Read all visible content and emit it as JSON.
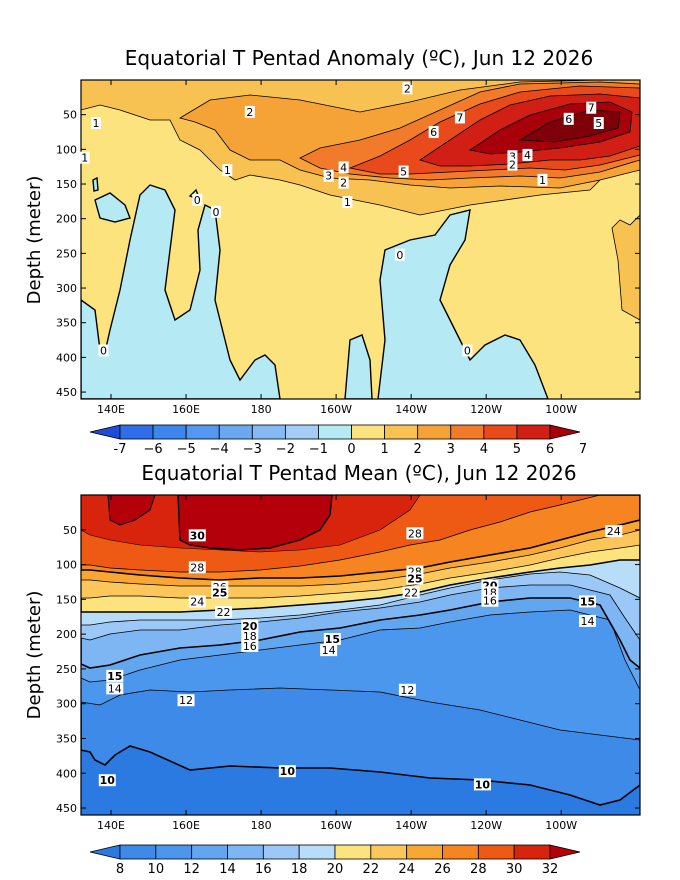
{
  "chart_data": [
    {
      "type": "heatmap",
      "title": "Equatorial T Pentad Anomaly (ºC), Jun 12 2026",
      "ylabel": "Depth (meter)",
      "xlabel": "",
      "x_ticks": [
        "140E",
        "160E",
        "180",
        "160W",
        "140W",
        "120W",
        "100W"
      ],
      "x_tick_lon": [
        140,
        160,
        180,
        200,
        220,
        240,
        260
      ],
      "xlim_lon": [
        132,
        281
      ],
      "y_ticks": [
        50,
        100,
        150,
        200,
        250,
        300,
        350,
        400,
        450
      ],
      "ylim": [
        0,
        460
      ],
      "colorbar_levels": [
        -7,
        -6,
        -5,
        -4,
        -3,
        -2,
        -1,
        0,
        1,
        2,
        3,
        4,
        5,
        6,
        7
      ],
      "colorbar_labels": [
        "-7",
        "−6",
        "−5",
        "−4",
        "−3",
        "−2",
        "−1",
        "0",
        "1",
        "2",
        "3",
        "4",
        "5",
        "6",
        "7"
      ],
      "colors": [
        "#1f4bd6",
        "#2f6ee8",
        "#3d86ee",
        "#5397f0",
        "#6aa8f2",
        "#86baf4",
        "#a3cdf6",
        "#b5eaf4",
        "#fde37d",
        "#f8c252",
        "#f5a236",
        "#f17b2a",
        "#e94a1c",
        "#d11f16",
        "#a8000a"
      ],
      "contour_labels": [
        {
          "lon": 219,
          "depth": 12,
          "label": "2"
        },
        {
          "lon": 177,
          "depth": 46,
          "label": "2"
        },
        {
          "lon": 136,
          "depth": 62,
          "label": "1"
        },
        {
          "lon": 233,
          "depth": 54,
          "label": "7"
        },
        {
          "lon": 268,
          "depth": 40,
          "label": "7"
        },
        {
          "lon": 262,
          "depth": 56,
          "label": "6"
        },
        {
          "lon": 270,
          "depth": 62,
          "label": "5"
        },
        {
          "lon": 226,
          "depth": 75,
          "label": "6"
        },
        {
          "lon": 247,
          "depth": 110,
          "label": "3"
        },
        {
          "lon": 251,
          "depth": 108,
          "label": "4"
        },
        {
          "lon": 247,
          "depth": 122,
          "label": "2"
        },
        {
          "lon": 133,
          "depth": 112,
          "label": "1"
        },
        {
          "lon": 171,
          "depth": 130,
          "label": "1"
        },
        {
          "lon": 202,
          "depth": 126,
          "label": "4"
        },
        {
          "lon": 198,
          "depth": 138,
          "label": "3"
        },
        {
          "lon": 202,
          "depth": 148,
          "label": "2"
        },
        {
          "lon": 218,
          "depth": 132,
          "label": "5"
        },
        {
          "lon": 255,
          "depth": 144,
          "label": "1"
        },
        {
          "lon": 203,
          "depth": 176,
          "label": "1"
        },
        {
          "lon": 163,
          "depth": 173,
          "label": "0"
        },
        {
          "lon": 168,
          "depth": 190,
          "label": "0"
        },
        {
          "lon": 217,
          "depth": 252,
          "label": "0"
        },
        {
          "lon": 138,
          "depth": 390,
          "label": "0"
        },
        {
          "lon": 235,
          "depth": 390,
          "label": "0"
        }
      ]
    },
    {
      "type": "heatmap",
      "title": "Equatorial T Pentad Mean (ºC), Jun 12 2026",
      "ylabel": "Depth (meter)",
      "xlabel": "",
      "x_ticks": [
        "140E",
        "160E",
        "180",
        "160W",
        "140W",
        "120W",
        "100W"
      ],
      "x_tick_lon": [
        140,
        160,
        180,
        200,
        220,
        240,
        260
      ],
      "xlim_lon": [
        132,
        281
      ],
      "y_ticks": [
        50,
        100,
        150,
        200,
        250,
        300,
        350,
        400,
        450
      ],
      "ylim": [
        0,
        460
      ],
      "colorbar_levels": [
        8,
        10,
        12,
        14,
        16,
        18,
        20,
        22,
        24,
        26,
        28,
        30,
        32
      ],
      "colorbar_labels": [
        "8",
        "10",
        "12",
        "14",
        "16",
        "18",
        "20",
        "22",
        "24",
        "26",
        "28",
        "30",
        "32"
      ],
      "colors": [
        "#2a7ae2",
        "#3d8ae8",
        "#4c97ee",
        "#62a6f0",
        "#7db6f3",
        "#9bc8f6",
        "#b7ddf8",
        "#fde37d",
        "#fcc65a",
        "#f9a633",
        "#f68421",
        "#ee5a14",
        "#d8240c",
        "#b3000a"
      ],
      "contour_labels": [
        {
          "lon": 163,
          "depth": 58,
          "label": "30",
          "bold": true
        },
        {
          "lon": 221,
          "depth": 55,
          "label": "28"
        },
        {
          "lon": 274,
          "depth": 52,
          "label": "24"
        },
        {
          "lon": 163,
          "depth": 104,
          "label": "28"
        },
        {
          "lon": 221,
          "depth": 110,
          "label": "28"
        },
        {
          "lon": 169,
          "depth": 132,
          "label": "26"
        },
        {
          "lon": 169,
          "depth": 140,
          "label": "25",
          "bold": true
        },
        {
          "lon": 221,
          "depth": 120,
          "label": "25",
          "bold": true
        },
        {
          "lon": 163,
          "depth": 153,
          "label": "24"
        },
        {
          "lon": 220,
          "depth": 140,
          "label": "22"
        },
        {
          "lon": 170,
          "depth": 168,
          "label": "22"
        },
        {
          "lon": 241,
          "depth": 130,
          "label": "20",
          "bold": true
        },
        {
          "lon": 241,
          "depth": 140,
          "label": "18"
        },
        {
          "lon": 241,
          "depth": 152,
          "label": "16"
        },
        {
          "lon": 177,
          "depth": 188,
          "label": "20",
          "bold": true
        },
        {
          "lon": 177,
          "depth": 203,
          "label": "18"
        },
        {
          "lon": 177,
          "depth": 217,
          "label": "16"
        },
        {
          "lon": 267,
          "depth": 153,
          "label": "15",
          "bold": true
        },
        {
          "lon": 267,
          "depth": 181,
          "label": "14"
        },
        {
          "lon": 199,
          "depth": 207,
          "label": "15",
          "bold": true
        },
        {
          "lon": 198,
          "depth": 223,
          "label": "14"
        },
        {
          "lon": 141,
          "depth": 260,
          "label": "15",
          "bold": true
        },
        {
          "lon": 141,
          "depth": 278,
          "label": "14"
        },
        {
          "lon": 160,
          "depth": 295,
          "label": "12"
        },
        {
          "lon": 219,
          "depth": 280,
          "label": "12"
        },
        {
          "lon": 139,
          "depth": 410,
          "label": "10",
          "bold": true
        },
        {
          "lon": 187,
          "depth": 397,
          "label": "10",
          "bold": true
        },
        {
          "lon": 239,
          "depth": 416,
          "label": "10",
          "bold": true
        }
      ]
    }
  ]
}
